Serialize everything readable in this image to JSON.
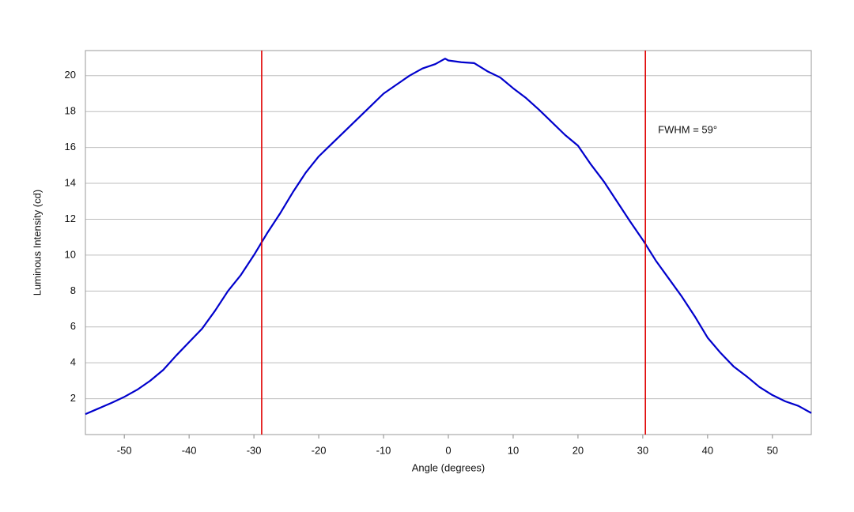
{
  "chart_data": {
    "type": "line",
    "x_label": "Angle (degrees)",
    "y_label": "Luminous Intensity (cd)",
    "annotation": "FWHM = 59°",
    "x": [
      -56,
      -54,
      -52,
      -50,
      -48,
      -46,
      -44,
      -42,
      -40,
      -38,
      -36,
      -34,
      -32,
      -30,
      -28,
      -26,
      -24,
      -22,
      -20,
      -18,
      -16,
      -14,
      -12,
      -10,
      -8,
      -6,
      -4,
      -2,
      -0.5,
      0,
      2,
      4,
      6,
      8,
      10,
      12,
      14,
      16,
      18,
      20,
      22,
      24,
      26,
      28,
      30,
      32,
      34,
      36,
      38,
      40,
      42,
      44,
      46,
      48,
      50,
      52,
      54,
      56
    ],
    "series": [
      {
        "color": "#0000cc",
        "values": [
          1.14,
          1.45,
          1.76,
          2.1,
          2.5,
          3.0,
          3.6,
          4.4,
          5.15,
          5.9,
          6.9,
          8.0,
          8.9,
          10.0,
          11.2,
          12.3,
          13.5,
          14.6,
          15.5,
          16.2,
          16.9,
          17.6,
          18.3,
          19.0,
          19.5,
          20.0,
          20.4,
          20.65,
          20.95,
          20.85,
          20.75,
          20.7,
          20.25,
          19.9,
          19.3,
          18.75,
          18.1,
          17.4,
          16.7,
          16.1,
          15.05,
          14.1,
          13.0,
          11.9,
          10.85,
          9.7,
          8.7,
          7.7,
          6.6,
          5.4,
          4.55,
          3.8,
          3.25,
          2.65,
          2.2,
          1.85,
          1.6,
          1.2
        ]
      }
    ],
    "vlines": [
      {
        "x": -28.8,
        "color": "#e00000"
      },
      {
        "x": 30.4,
        "color": "#e00000"
      }
    ],
    "xlim": [
      -56,
      56
    ],
    "ylim": [
      0,
      21.4
    ],
    "xticks": [
      -50,
      -40,
      -30,
      -20,
      -10,
      0,
      10,
      20,
      30,
      40,
      50
    ],
    "yticks": [
      2,
      4,
      6,
      8,
      10,
      12,
      14,
      16,
      18,
      20
    ],
    "grid": true
  }
}
